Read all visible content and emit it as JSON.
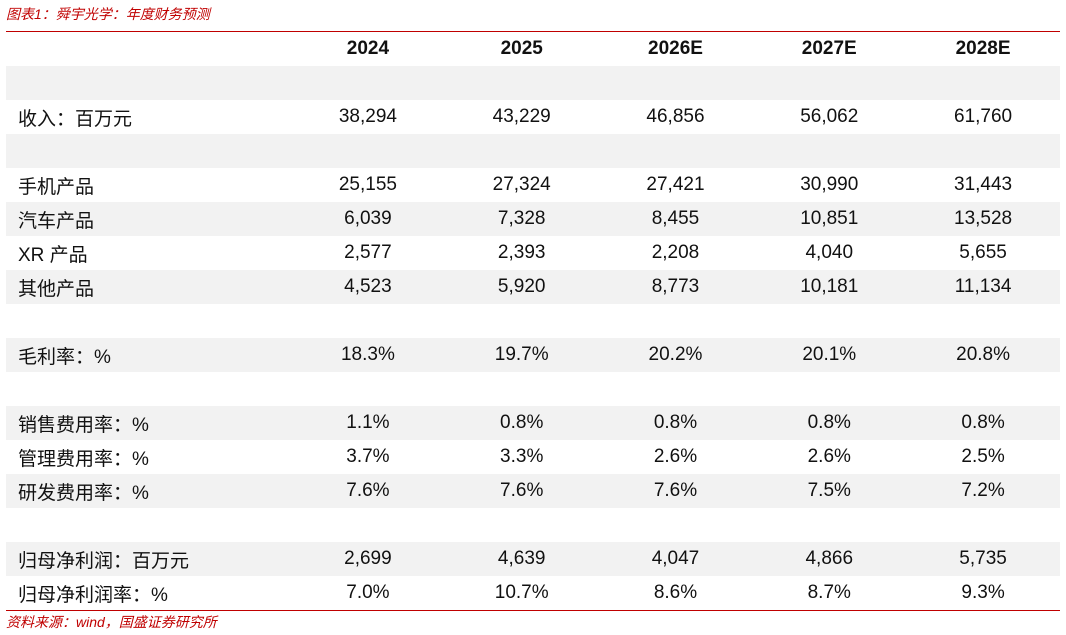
{
  "header": {
    "title": "图表1：舜宇光学：年度财务预测"
  },
  "table": {
    "columns": [
      "2024",
      "2025",
      "2026E",
      "2027E",
      "2028E"
    ],
    "sections": [
      {
        "rows": [
          {
            "label": "收入：百万元",
            "values": [
              "38,294",
              "43,229",
              "46,856",
              "56,062",
              "61,760"
            ]
          }
        ]
      },
      {
        "rows": [
          {
            "label": "手机产品",
            "values": [
              "25,155",
              "27,324",
              "27,421",
              "30,990",
              "31,443"
            ]
          },
          {
            "label": "汽车产品",
            "values": [
              "6,039",
              "7,328",
              "8,455",
              "10,851",
              "13,528"
            ]
          },
          {
            "label": "XR 产品",
            "values": [
              "2,577",
              "2,393",
              "2,208",
              "4,040",
              "5,655"
            ]
          },
          {
            "label": "其他产品",
            "values": [
              "4,523",
              "5,920",
              "8,773",
              "10,181",
              "11,134"
            ]
          }
        ]
      },
      {
        "rows": [
          {
            "label": "毛利率：%",
            "values": [
              "18.3%",
              "19.7%",
              "20.2%",
              "20.1%",
              "20.8%"
            ]
          }
        ]
      },
      {
        "rows": [
          {
            "label": "销售费用率：%",
            "values": [
              "1.1%",
              "0.8%",
              "0.8%",
              "0.8%",
              "0.8%"
            ]
          },
          {
            "label": "管理费用率：%",
            "values": [
              "3.7%",
              "3.3%",
              "2.6%",
              "2.6%",
              "2.5%"
            ]
          },
          {
            "label": "研发费用率：%",
            "values": [
              "7.6%",
              "7.6%",
              "7.6%",
              "7.5%",
              "7.2%"
            ]
          }
        ]
      },
      {
        "rows": [
          {
            "label": "归母净利润：百万元",
            "values": [
              "2,699",
              "4,639",
              "4,047",
              "4,866",
              "5,735"
            ]
          },
          {
            "label": "归母净利润率：%",
            "values": [
              "7.0%",
              "10.7%",
              "8.6%",
              "8.7%",
              "9.3%"
            ]
          }
        ]
      }
    ]
  },
  "footer": {
    "source": "资料来源：wind，国盛证券研究所"
  }
}
